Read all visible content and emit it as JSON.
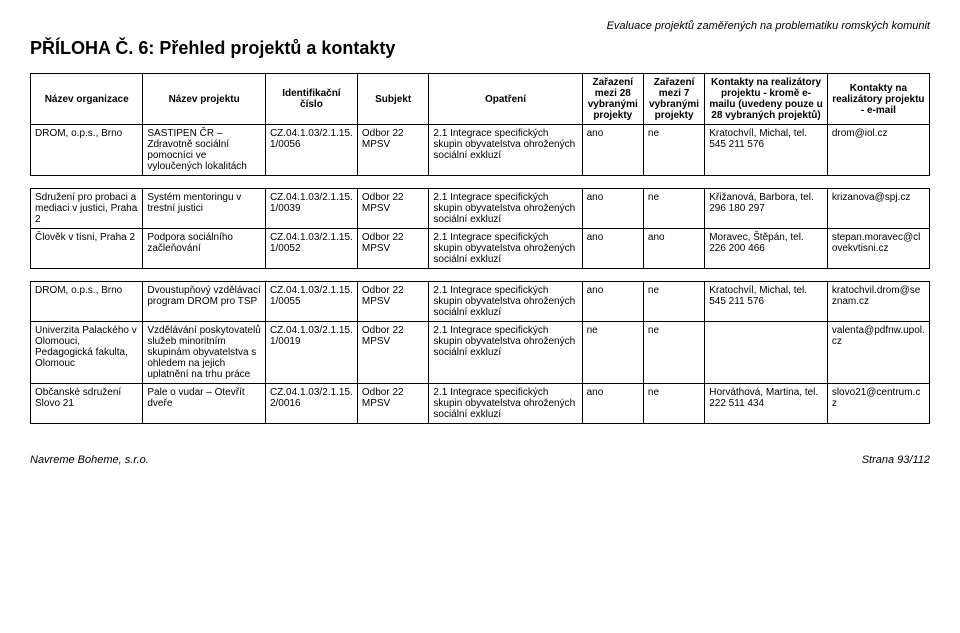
{
  "header": {
    "topRight": "Evaluace projektů zaměřených na problematiku romských komunit",
    "title": "PŘÍLOHA Č. 6: Přehled projektů a kontakty"
  },
  "columns": [
    "Název organizace",
    "Název projektu",
    "Identifikační číslo",
    "Subjekt",
    "Opatření",
    "Zařazení mezi 28 vybranými projekty",
    "Zařazení mezi 7 vybranými projekty",
    "Kontakty na realizátory projektu - kromě e-mailu (uvedeny pouze u 28 vybraných projektů)",
    "Kontakty na realizátory projektu - e-mail"
  ],
  "group1": [
    {
      "org": "DROM, o.p.s., Brno",
      "proj": "SASTIPEN ČR – Zdravotně sociální pomocníci ve vyloučených lokalitách",
      "id": "CZ.04.1.03/2.1.15.1/0056",
      "subj": "Odbor 22 MPSV",
      "opat": "2.1 Integrace specifických skupin obyvatelstva ohrožených sociální exkluzí",
      "z28": "ano",
      "z7": "ne",
      "kont1": "Kratochvíl, Michal, tel. 545 211 576",
      "kont2": "drom@iol.cz"
    }
  ],
  "group2": [
    {
      "org": "Sdružení pro probaci a mediaci v justici, Praha 2",
      "proj": "Systém mentoringu v trestní justici",
      "id": "CZ.04.1.03/2.1.15.1/0039",
      "subj": "Odbor 22 MPSV",
      "opat": "2.1 Integrace specifických skupin obyvatelstva ohrožených sociální exkluzí",
      "z28": "ano",
      "z7": "ne",
      "kont1": "Křižanová, Barbora, tel. 296 180 297",
      "kont2": "krizanova@spj.cz"
    },
    {
      "org": "Člověk v tísni, Praha 2",
      "proj": "Podpora sociálního začleňování",
      "id": "CZ.04.1.03/2.1.15.1/0052",
      "subj": "Odbor 22 MPSV",
      "opat": "2.1 Integrace specifických skupin obyvatelstva ohrožených sociální exkluzí",
      "z28": "ano",
      "z7": "ano",
      "kont1": "Moravec, Štěpán, tel. 226 200 466",
      "kont2": "stepan.moravec@clovekvtisni.cz"
    }
  ],
  "group3": [
    {
      "org": "DROM, o.p.s., Brno",
      "proj": "Dvoustupňový vzdělávací program DROM pro TSP",
      "id": "CZ.04.1.03/2.1.15.1/0055",
      "subj": "Odbor 22 MPSV",
      "opat": "2.1 Integrace specifických skupin obyvatelstva ohrožených sociální exkluzí",
      "z28": "ano",
      "z7": "ne",
      "kont1": "Kratochvíl, Michal, tel. 545 211 576",
      "kont2": "kratochvil.drom@seznam.cz"
    },
    {
      "org": "Univerzita Palackého v Olomouci, Pedagogická fakulta, Olomouc",
      "proj": "Vzdělávání poskytovatelů služeb minoritním skupinám obyvatelstva s ohledem na jejich uplatnění na trhu práce",
      "id": "CZ.04.1.03/2.1.15.1/0019",
      "subj": "Odbor 22 MPSV",
      "opat": "2.1 Integrace specifických skupin obyvatelstva ohrožených sociální exkluzí",
      "z28": "ne",
      "z7": "ne",
      "kont1": "",
      "kont2": "valenta@pdfnw.upol.cz"
    },
    {
      "org": "Občanské sdružení Slovo 21",
      "proj": "Pale o vudar – Otevřít dveře",
      "id": "CZ.04.1.03/2.1.15.2/0016",
      "subj": "Odbor 22 MPSV",
      "opat": "2.1 Integrace specifických skupin obyvatelstva ohrožených sociální exkluzí",
      "z28": "ano",
      "z7": "ne",
      "kont1": "Horváthová, Martina, tel. 222 511 434",
      "kont2": "slovo21@centrum.cz"
    }
  ],
  "footer": {
    "left": "Navreme Boheme, s.r.o.",
    "right": "Strana 93/112"
  }
}
